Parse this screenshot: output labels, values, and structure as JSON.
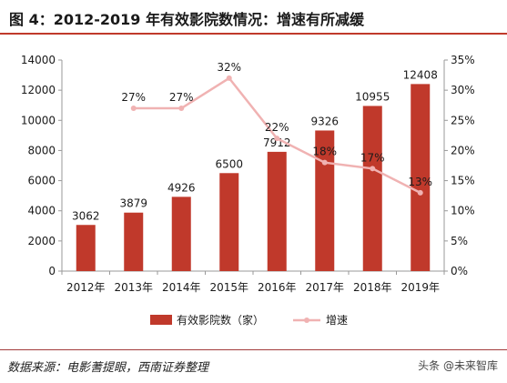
{
  "title": "图 4：2012-2019 年有效影院数情况：增速有所减缓",
  "source": "数据来源：电影蓍提眼，西南证券整理",
  "watermark": "头条 @未来智库",
  "colors": {
    "bar": "#c0392b",
    "line": "#f0b2b2",
    "axis": "#999999"
  },
  "chart_data": {
    "type": "bar",
    "categories": [
      "2012年",
      "2013年",
      "2014年",
      "2015年",
      "2016年",
      "2017年",
      "2018年",
      "2019年"
    ],
    "series": [
      {
        "name": "有效影院数（家）",
        "type": "bar",
        "axis": "left",
        "values": [
          3062,
          3879,
          4926,
          6500,
          7912,
          9326,
          10955,
          12408
        ],
        "labels": [
          "3062",
          "3879",
          "4926",
          "6500",
          "7912",
          "9326",
          "10955",
          "12408"
        ]
      },
      {
        "name": "增速",
        "type": "line",
        "axis": "right",
        "values": [
          null,
          0.27,
          0.27,
          0.32,
          0.22,
          0.18,
          0.17,
          0.13
        ],
        "labels": [
          "",
          "27%",
          "27%",
          "32%",
          "22%",
          "18%",
          "17%",
          "13%"
        ]
      }
    ],
    "y_left": {
      "min": 0,
      "max": 14000,
      "ticks": [
        "0",
        "2000",
        "4000",
        "6000",
        "8000",
        "10000",
        "12000",
        "14000"
      ]
    },
    "y_right": {
      "min": 0,
      "max": 0.35,
      "ticks": [
        "0%",
        "5%",
        "10%",
        "15%",
        "20%",
        "25%",
        "30%",
        "35%"
      ]
    },
    "legend": "bottom",
    "grid": false
  }
}
